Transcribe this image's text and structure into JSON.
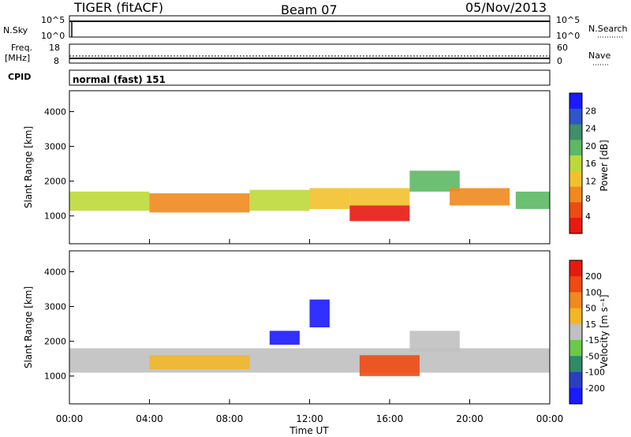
{
  "header": {
    "title": "TIGER (fitACF)",
    "beam": "Beam 07",
    "date": "05/Nov/2013"
  },
  "nsky_panel": {
    "left_label": "N.Sky",
    "left_ticks": [
      "10^5",
      "10^0"
    ],
    "right_label": "N.Search",
    "right_ticks": [
      "10^5",
      "10^0"
    ]
  },
  "freq_panel": {
    "left_label_1": "Freq.",
    "left_label_2": "[MHz]",
    "left_ticks": [
      "18",
      "8"
    ],
    "right_label": "Nave",
    "right_ticks": [
      "60",
      "0"
    ]
  },
  "cpid_panel": {
    "label": "CPID",
    "mode": "normal (fast) 151"
  },
  "x_axis": {
    "label": "Time UT",
    "ticks": [
      "00:00",
      "04:00",
      "08:00",
      "12:00",
      "16:00",
      "20:00",
      "00:00"
    ]
  },
  "colors": {
    "power": [
      "#1a1aff",
      "#2f55c8",
      "#3f8f6a",
      "#5db864",
      "#bcd93a",
      "#f2c12e",
      "#f08a1e",
      "#ee4a12",
      "#e61a10"
    ],
    "velocity": [
      "#1a1aff",
      "#2a3fc0",
      "#2f8a6a",
      "#6cc84a",
      "#c0c0c0",
      "#f2b628",
      "#f08a1e",
      "#ee4a12",
      "#e61a10"
    ]
  },
  "chart_data": [
    {
      "type": "heatmap",
      "name": "power",
      "ylabel": "Slant Range [km]",
      "ylim": [
        200,
        4600
      ],
      "yticks": [
        "1000",
        "2000",
        "3000",
        "4000"
      ],
      "xlim_hours": [
        0,
        24
      ],
      "colorbar": {
        "label": "Power [dB]",
        "ticks": [
          "4",
          "8",
          "12",
          "16",
          "20",
          "24",
          "28"
        ]
      },
      "bands": [
        {
          "t0": 0.0,
          "t1": 4.0,
          "r0": 1150,
          "r1": 1700,
          "level": 4
        },
        {
          "t0": 4.0,
          "t1": 9.0,
          "r0": 1100,
          "r1": 1650,
          "level": 6
        },
        {
          "t0": 9.0,
          "t1": 12.0,
          "r0": 1150,
          "r1": 1750,
          "level": 4
        },
        {
          "t0": 12.0,
          "t1": 14.0,
          "r0": 1200,
          "r1": 1800,
          "level": 5
        },
        {
          "t0": 14.0,
          "t1": 17.0,
          "r0": 850,
          "r1": 1300,
          "level": 8
        },
        {
          "t0": 14.0,
          "t1": 17.0,
          "r0": 1300,
          "r1": 1800,
          "level": 5
        },
        {
          "t0": 17.0,
          "t1": 19.5,
          "r0": 1700,
          "r1": 2300,
          "level": 3
        },
        {
          "t0": 19.0,
          "t1": 22.0,
          "r0": 1300,
          "r1": 1800,
          "level": 6
        },
        {
          "t0": 22.3,
          "t1": 24.0,
          "r0": 1200,
          "r1": 1700,
          "level": 3
        }
      ]
    },
    {
      "type": "heatmap",
      "name": "velocity",
      "ylabel": "Slant Range [km]",
      "ylim": [
        200,
        4600
      ],
      "yticks": [
        "1000",
        "2000",
        "3000",
        "4000"
      ],
      "xlim_hours": [
        0,
        24
      ],
      "colorbar": {
        "label": "Velocity [m s⁻¹]",
        "ticks": [
          "200",
          "100",
          "50",
          "15",
          "-15",
          "-50",
          "-100",
          "-200"
        ]
      },
      "bands": [
        {
          "t0": 0.0,
          "t1": 24.0,
          "r0": 1100,
          "r1": 1800,
          "level": 4
        },
        {
          "t0": 4.0,
          "t1": 9.0,
          "r0": 1200,
          "r1": 1600,
          "level": 5
        },
        {
          "t0": 10.0,
          "t1": 11.5,
          "r0": 1900,
          "r1": 2300,
          "level": 0
        },
        {
          "t0": 12.0,
          "t1": 13.0,
          "r0": 2400,
          "r1": 3200,
          "level": 0
        },
        {
          "t0": 14.5,
          "t1": 17.5,
          "r0": 1000,
          "r1": 1600,
          "level": 7
        },
        {
          "t0": 17.0,
          "t1": 19.5,
          "r0": 1700,
          "r1": 2300,
          "level": 4
        }
      ]
    }
  ]
}
